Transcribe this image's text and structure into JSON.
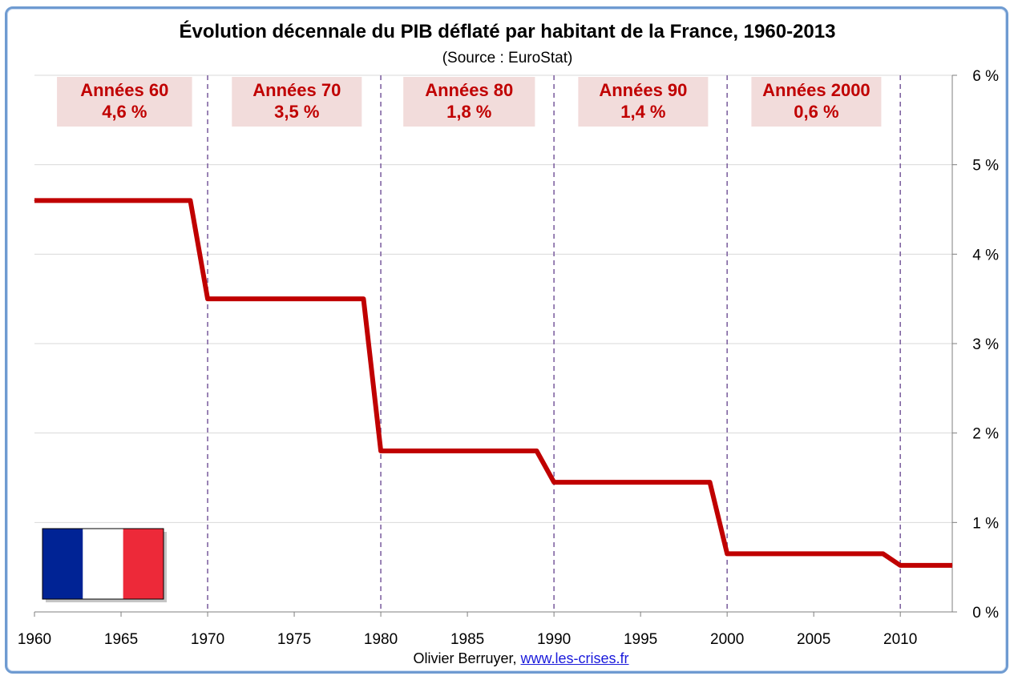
{
  "chart_data": {
    "type": "line",
    "title": "Évolution décennale du PIB déflaté par habitant de la France, 1960-2013",
    "subtitle": "(Source : EuroStat)",
    "x": [
      1960,
      1969,
      1970,
      1979,
      1980,
      1989,
      1990,
      1999,
      2000,
      2009,
      2010,
      2013
    ],
    "series": [
      {
        "values": [
          4.6,
          4.6,
          3.5,
          3.5,
          1.8,
          1.8,
          1.45,
          1.45,
          0.65,
          0.65,
          0.52,
          0.52
        ]
      }
    ],
    "xlim": [
      1960,
      2013
    ],
    "ylim": [
      0,
      6
    ],
    "x_ticks": [
      "1960",
      "1965",
      "1970",
      "1975",
      "1980",
      "1985",
      "1990",
      "1995",
      "2000",
      "2005",
      "2010"
    ],
    "y_ticks": [
      "0 %",
      "1 %",
      "2 %",
      "3 %",
      "4 %",
      "5 %",
      "6 %"
    ],
    "y_axis_side": "right",
    "grid": true,
    "decade_markers": [
      1970,
      1980,
      1990,
      2000,
      2010
    ],
    "annotations": [
      {
        "line1": "Années 60",
        "line2": "4,6 %",
        "start": 1961.3,
        "end": 1969.1
      },
      {
        "line1": "Années 70",
        "line2": "3,5 %",
        "start": 1971.4,
        "end": 1978.9
      },
      {
        "line1": "Années 80",
        "line2": "1,8 %",
        "start": 1981.3,
        "end": 1988.9
      },
      {
        "line1": "Années 90",
        "line2": "1,4 %",
        "start": 1991.4,
        "end": 1998.9
      },
      {
        "line1": "Années 2000",
        "line2": "0,6 %",
        "start": 2001.4,
        "end": 2008.9
      }
    ],
    "flag": "france-flag"
  },
  "credit": {
    "author": "Olivier Berruyer,",
    "link": "www.les-crises.fr"
  },
  "colors": {
    "line": "#c00000",
    "annotation_bg": "#f2dcdb",
    "annotation_text": "#c00000",
    "decade_marker": "#8064a2",
    "gridline": "#d9d9d9",
    "flag_blue": "#002395",
    "flag_white": "#ffffff",
    "flag_red": "#ed2939",
    "frame": "#6f9bd1"
  }
}
